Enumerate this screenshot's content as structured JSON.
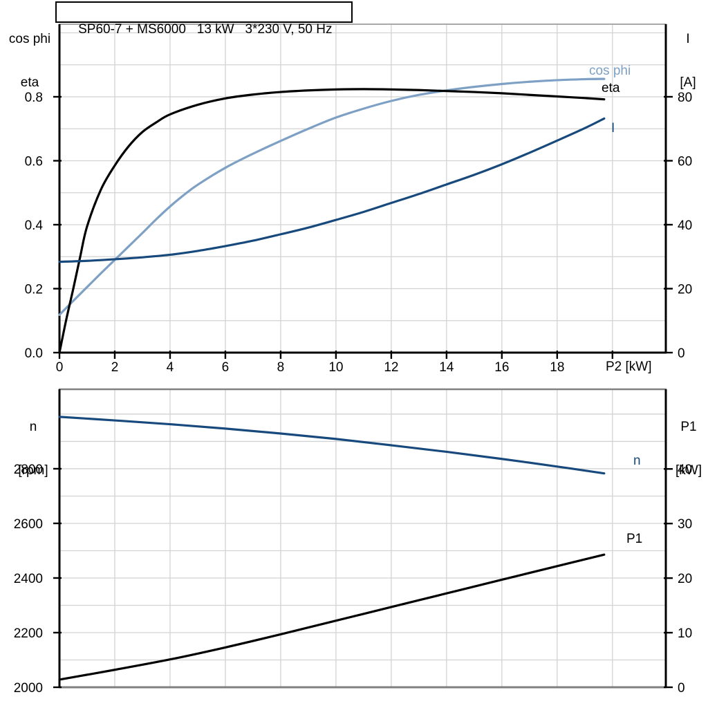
{
  "title": "SP60-7 + MS6000   13 kW   3*230 V, 50 Hz",
  "colors": {
    "cos_phi": "#7DA0C4",
    "eta": "#000000",
    "current": "#17497D",
    "speed": "#17497D",
    "power": "#000000",
    "grid": "#D2D2D2",
    "axis": "#000000",
    "frame_top": "#A8A8A8",
    "frame_gray": "#808080"
  },
  "chart_data": [
    {
      "type": "line",
      "title": "SP60-7 + MS6000   13 kW   3*230 V, 50 Hz",
      "ylabel_left_lines": [
        "cos phi",
        "eta"
      ],
      "ylabel_right_lines": [
        "I",
        "[A]"
      ],
      "xlabel": "P2 [kW]",
      "grid": "on",
      "legend_position": "curve-end-labels",
      "xlim": [
        0,
        21.93
      ],
      "ylim_left": [
        0,
        1.027
      ],
      "ylim_right": [
        0,
        102.7
      ],
      "x_grid": [
        2,
        4,
        6,
        8,
        10,
        12,
        14,
        16,
        18,
        20
      ],
      "y_grid_left": [
        0.1,
        0.2,
        0.3,
        0.4,
        0.5,
        0.6,
        0.7,
        0.8,
        0.9,
        1.0
      ],
      "x_tick_marks": [
        0,
        2,
        4,
        6,
        8,
        10,
        12,
        14,
        16,
        18,
        20
      ],
      "x_ticks": {
        "values": [
          0,
          2,
          4,
          6,
          8,
          10,
          12,
          14,
          16,
          18
        ],
        "labels": [
          "0",
          "2",
          "4",
          "6",
          "8",
          "10",
          "12",
          "14",
          "16",
          "18"
        ]
      },
      "y_ticks_left": {
        "values": [
          0,
          0.2,
          0.4,
          0.6,
          0.8
        ],
        "labels": [
          "0.0",
          "0.2",
          "0.4",
          "0.6",
          "0.8"
        ]
      },
      "y_ticks_right": {
        "values": [
          0,
          20,
          40,
          60,
          80
        ],
        "labels": [
          "0",
          "20",
          "40",
          "60",
          "80"
        ]
      },
      "series": [
        {
          "name": "cos phi",
          "axis": "left",
          "color_key": "cos_phi",
          "x": [
            0,
            0.5,
            1,
            1.5,
            2,
            2.5,
            3,
            3.5,
            4,
            4.5,
            5,
            6,
            7,
            8,
            9,
            10,
            11,
            12,
            13,
            14,
            15,
            16,
            17,
            18,
            19,
            19.7
          ],
          "y": [
            0.118,
            0.162,
            0.205,
            0.248,
            0.29,
            0.332,
            0.374,
            0.417,
            0.457,
            0.493,
            0.525,
            0.578,
            0.622,
            0.662,
            0.7,
            0.735,
            0.763,
            0.787,
            0.806,
            0.82,
            0.831,
            0.84,
            0.847,
            0.852,
            0.855,
            0.856
          ]
        },
        {
          "name": "eta",
          "axis": "left",
          "color_key": "eta",
          "x": [
            0,
            0.25,
            0.5,
            0.75,
            1,
            1.5,
            2,
            2.5,
            3,
            3.5,
            4,
            5,
            6,
            7,
            8,
            9,
            10,
            11,
            12,
            13,
            14,
            15,
            16,
            17,
            18,
            19,
            19.7
          ],
          "y": [
            0,
            0.105,
            0.2,
            0.3,
            0.395,
            0.51,
            0.585,
            0.645,
            0.69,
            0.72,
            0.745,
            0.775,
            0.795,
            0.807,
            0.815,
            0.82,
            0.823,
            0.824,
            0.823,
            0.821,
            0.818,
            0.815,
            0.811,
            0.806,
            0.801,
            0.796,
            0.792
          ]
        },
        {
          "name": "I",
          "axis": "right",
          "color_key": "current",
          "x": [
            0,
            1,
            2,
            3,
            4,
            5,
            6,
            7,
            8,
            9,
            10,
            11,
            12,
            13,
            14,
            15,
            16,
            17,
            18,
            19,
            19.7
          ],
          "y": [
            28.4,
            28.7,
            29.2,
            29.8,
            30.6,
            31.8,
            33.3,
            35.0,
            37.0,
            39.1,
            41.5,
            44.0,
            46.8,
            49.6,
            52.6,
            55.6,
            58.9,
            62.5,
            66.3,
            70.2,
            73.2
          ]
        }
      ]
    },
    {
      "type": "line",
      "title": "",
      "ylabel_left_lines": [
        "n",
        "[rpm]"
      ],
      "ylabel_right_lines": [
        "P1",
        "[kW]"
      ],
      "xlabel": "",
      "grid": "on",
      "legend_position": "curve-end-labels",
      "xlim": [
        0,
        21.93
      ],
      "ylim_left": [
        2000,
        3091
      ],
      "ylim_right": [
        0,
        54.6
      ],
      "x_grid": [
        2,
        4,
        6,
        8,
        10,
        12,
        14,
        16,
        18,
        20
      ],
      "y_grid_left": [
        2100,
        2200,
        2300,
        2400,
        2500,
        2600,
        2700,
        2800,
        2900,
        3000
      ],
      "x_tick_marks": [],
      "x_ticks": {
        "values": [],
        "labels": []
      },
      "y_ticks_left": {
        "values": [
          2000,
          2200,
          2400,
          2600,
          2800
        ],
        "labels": [
          "2000",
          "2200",
          "2400",
          "2600",
          "2800"
        ]
      },
      "y_ticks_right": {
        "values": [
          0,
          10,
          20,
          30,
          40
        ],
        "labels": [
          "0",
          "10",
          "20",
          "30",
          "40"
        ]
      },
      "series": [
        {
          "name": "n",
          "axis": "left",
          "color_key": "speed",
          "x": [
            0,
            2,
            4,
            6,
            8,
            10,
            12,
            14,
            16,
            18,
            19.7
          ],
          "y": [
            2990,
            2977,
            2963,
            2947,
            2929,
            2909,
            2886,
            2862,
            2836,
            2808,
            2783
          ]
        },
        {
          "name": "P1",
          "axis": "right",
          "color_key": "power",
          "x": [
            0,
            2,
            4,
            6,
            8,
            10,
            12,
            14,
            16,
            18,
            19.7
          ],
          "y": [
            1.4,
            3.2,
            5.1,
            7.3,
            9.7,
            12.2,
            14.7,
            17.2,
            19.7,
            22.2,
            24.3
          ]
        }
      ]
    }
  ]
}
